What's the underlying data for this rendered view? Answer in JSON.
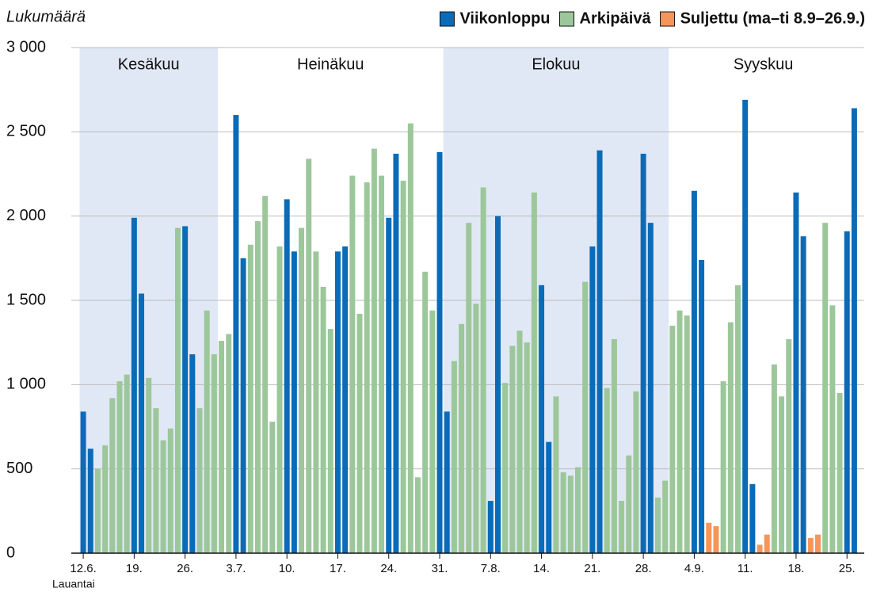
{
  "chart_data": {
    "type": "bar",
    "y_label": "Lukumäärä",
    "x_label": "Lauantai",
    "annotations": [
      "Kesäkuu",
      "Heinäkuu",
      "Elokuu",
      "Syyskuu"
    ],
    "legend": "top-right",
    "grid": true,
    "ylim": [
      0,
      3000
    ],
    "yticks": [
      0,
      500,
      {
        "value": 1000,
        "label": "1 000"
      },
      {
        "value": 1500,
        "label": "1 500"
      },
      {
        "value": 2000,
        "label": "2 000"
      },
      {
        "value": 2500,
        "label": "2 500"
      },
      {
        "value": 3000,
        "label": "3 000"
      }
    ],
    "categories": [
      "12.6.",
      null,
      null,
      null,
      null,
      null,
      null,
      "19.",
      null,
      null,
      null,
      null,
      null,
      null,
      "26.",
      null,
      null,
      null,
      null,
      null,
      null,
      "3.7.",
      null,
      null,
      null,
      null,
      null,
      null,
      "10.",
      null,
      null,
      null,
      null,
      null,
      null,
      "17.",
      null,
      null,
      null,
      null,
      null,
      null,
      "24.",
      null,
      null,
      null,
      null,
      null,
      null,
      "31.",
      null,
      null,
      null,
      null,
      null,
      null,
      "7.8.",
      null,
      null,
      null,
      null,
      null,
      null,
      "14.",
      null,
      null,
      null,
      null,
      null,
      null,
      "21.",
      null,
      null,
      null,
      null,
      null,
      null,
      "28.",
      null,
      null,
      null,
      null,
      null,
      null,
      "4.9.",
      null,
      null,
      null,
      null,
      null,
      null,
      "11.",
      null,
      null,
      null,
      null,
      null,
      null,
      "18.",
      null,
      null,
      null,
      null,
      null,
      null,
      "25.",
      null
    ],
    "series": [
      {
        "name": "Viikonloppu",
        "color": "#0a6bb8",
        "values": [
          840,
          620,
          null,
          null,
          null,
          null,
          null,
          1990,
          1540,
          null,
          null,
          null,
          null,
          null,
          1940,
          1180,
          null,
          null,
          null,
          null,
          null,
          2600,
          1750,
          null,
          null,
          null,
          null,
          null,
          2100,
          1790,
          null,
          null,
          null,
          null,
          null,
          1790,
          1820,
          null,
          null,
          null,
          null,
          null,
          1990,
          2370,
          null,
          null,
          null,
          null,
          null,
          2380,
          840,
          null,
          null,
          null,
          null,
          null,
          310,
          2000,
          null,
          null,
          null,
          null,
          null,
          1590,
          660,
          null,
          null,
          null,
          null,
          null,
          1820,
          2390,
          null,
          null,
          null,
          null,
          null,
          2370,
          1960,
          null,
          null,
          null,
          null,
          null,
          2150,
          1740,
          null,
          null,
          null,
          null,
          null,
          2690,
          410,
          null,
          null,
          null,
          null,
          null,
          2140,
          1880,
          null,
          null,
          null,
          null,
          null,
          1910,
          2640
        ]
      },
      {
        "name": "Arkipäivä",
        "color": "#9cc79a",
        "values": [
          null,
          null,
          500,
          640,
          920,
          1020,
          1060,
          null,
          null,
          1040,
          860,
          670,
          740,
          1930,
          null,
          null,
          860,
          1440,
          1180,
          1260,
          1300,
          null,
          null,
          1830,
          1970,
          2120,
          780,
          1820,
          null,
          null,
          1930,
          2340,
          1790,
          1580,
          1330,
          null,
          null,
          2240,
          1420,
          2200,
          2400,
          2240,
          null,
          null,
          2210,
          2550,
          450,
          1670,
          1440,
          null,
          null,
          1140,
          1360,
          1960,
          1480,
          2170,
          null,
          null,
          1010,
          1230,
          1320,
          1250,
          2140,
          null,
          null,
          930,
          480,
          460,
          510,
          1610,
          null,
          null,
          980,
          1270,
          310,
          580,
          960,
          null,
          null,
          330,
          430,
          1350,
          1440,
          1410,
          null,
          null,
          null,
          null,
          1020,
          1370,
          1590,
          null,
          null,
          null,
          null,
          1120,
          930,
          1270,
          null,
          null,
          null,
          null,
          1960,
          1470,
          950,
          null,
          null
        ]
      },
      {
        "name": "Suljettu (ma–ti 8.9–26.9.)",
        "color": "#f5955a",
        "values": [
          null,
          null,
          null,
          null,
          null,
          null,
          null,
          null,
          null,
          null,
          null,
          null,
          null,
          null,
          null,
          null,
          null,
          null,
          null,
          null,
          null,
          null,
          null,
          null,
          null,
          null,
          null,
          null,
          null,
          null,
          null,
          null,
          null,
          null,
          null,
          null,
          null,
          null,
          null,
          null,
          null,
          null,
          null,
          null,
          null,
          null,
          null,
          null,
          null,
          null,
          null,
          null,
          null,
          null,
          null,
          null,
          null,
          null,
          null,
          null,
          null,
          null,
          null,
          null,
          null,
          null,
          null,
          null,
          null,
          null,
          null,
          null,
          null,
          null,
          null,
          null,
          null,
          null,
          null,
          null,
          null,
          null,
          null,
          null,
          null,
          null,
          180,
          160,
          null,
          null,
          null,
          null,
          null,
          50,
          110,
          null,
          null,
          null,
          null,
          null,
          90,
          110,
          null,
          null,
          null,
          null,
          null
        ]
      }
    ]
  }
}
